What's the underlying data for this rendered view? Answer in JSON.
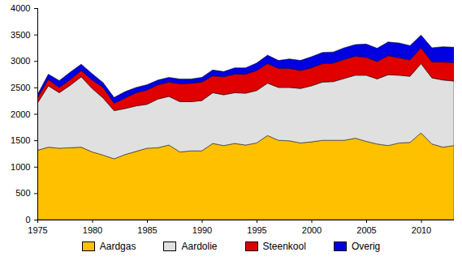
{
  "chart_data": {
    "type": "area",
    "stacked": true,
    "legend": "bottom",
    "grid": false,
    "x": [
      1975,
      1976,
      1977,
      1978,
      1979,
      1980,
      1981,
      1982,
      1983,
      1984,
      1985,
      1986,
      1987,
      1988,
      1989,
      1990,
      1991,
      1992,
      1993,
      1994,
      1995,
      1996,
      1997,
      1998,
      1999,
      2000,
      2001,
      2002,
      2003,
      2004,
      2005,
      2006,
      2007,
      2008,
      2009,
      2010,
      2011,
      2012,
      2013
    ],
    "xlim": [
      1975,
      2013
    ],
    "xticks": [
      1975,
      1980,
      1985,
      1990,
      1995,
      2000,
      2005,
      2010
    ],
    "ylim": [
      0,
      4000
    ],
    "yticks": [
      0,
      500,
      1000,
      1500,
      2000,
      2500,
      3000,
      3500,
      4000
    ],
    "series": [
      {
        "name": "Aardgas",
        "color": "#ffc000",
        "values": [
          1310,
          1370,
          1350,
          1360,
          1370,
          1280,
          1220,
          1150,
          1230,
          1290,
          1350,
          1360,
          1410,
          1280,
          1300,
          1300,
          1440,
          1400,
          1440,
          1410,
          1450,
          1590,
          1500,
          1490,
          1450,
          1470,
          1500,
          1500,
          1500,
          1540,
          1480,
          1430,
          1400,
          1450,
          1460,
          1640,
          1430,
          1370,
          1400
        ]
      },
      {
        "name": "Aardolie",
        "color": "#e0e0e0",
        "values": [
          890,
          1160,
          1050,
          1180,
          1330,
          1200,
          1080,
          910,
          870,
          860,
          830,
          920,
          920,
          950,
          930,
          950,
          960,
          960,
          960,
          980,
          990,
          990,
          1000,
          1010,
          1030,
          1060,
          1100,
          1110,
          1170,
          1190,
          1250,
          1230,
          1340,
          1280,
          1250,
          1310,
          1250,
          1270,
          1220
        ]
      },
      {
        "name": "Steenkool",
        "color": "#e00000",
        "values": [
          100,
          120,
          100,
          110,
          120,
          160,
          200,
          140,
          200,
          250,
          270,
          270,
          270,
          340,
          350,
          350,
          320,
          340,
          350,
          360,
          380,
          370,
          360,
          360,
          340,
          340,
          350,
          350,
          360,
          360,
          340,
          330,
          360,
          330,
          310,
          300,
          300,
          340,
          350
        ]
      },
      {
        "name": "Overig",
        "color": "#0000e0",
        "values": [
          60,
          100,
          130,
          140,
          120,
          120,
          90,
          110,
          120,
          100,
          100,
          90,
          90,
          90,
          80,
          90,
          110,
          100,
          120,
          120,
          140,
          160,
          150,
          180,
          190,
          210,
          210,
          210,
          220,
          220,
          250,
          250,
          260,
          280,
          270,
          240,
          270,
          290,
          290
        ]
      }
    ]
  }
}
